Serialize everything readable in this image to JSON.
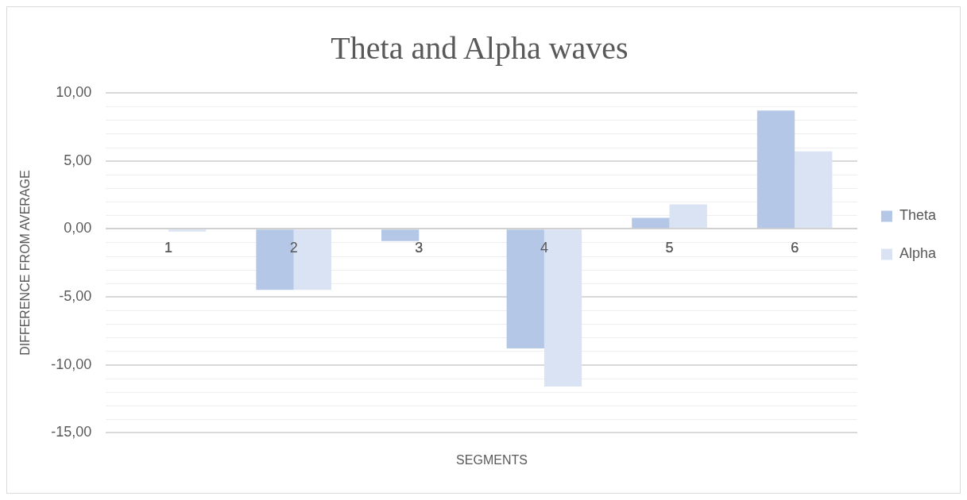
{
  "chart_data": {
    "type": "bar",
    "title": "Theta and Alpha waves",
    "xlabel": "SEGMENTS",
    "ylabel": "DIFFERENCE FROM AVERAGE",
    "categories": [
      "1",
      "2",
      "3",
      "4",
      "5",
      "6"
    ],
    "series": [
      {
        "name": "Theta",
        "color": "#b4c7e7",
        "values": [
          0,
          -4.5,
          -0.9,
          -8.8,
          0.8,
          8.7
        ]
      },
      {
        "name": "Alpha",
        "color": "#dae3f3",
        "values": [
          -0.2,
          -4.5,
          0,
          -11.6,
          1.8,
          5.7
        ]
      }
    ],
    "ylim": [
      -15,
      10
    ],
    "yticks": [
      {
        "value": -15,
        "label": "-15,00"
      },
      {
        "value": -10,
        "label": "-10,00"
      },
      {
        "value": -5,
        "label": "-5,00"
      },
      {
        "value": 0,
        "label": "0,00"
      },
      {
        "value": 5,
        "label": "5,00"
      },
      {
        "value": 10,
        "label": "10,00"
      }
    ],
    "grid": "y",
    "legend": "right"
  }
}
